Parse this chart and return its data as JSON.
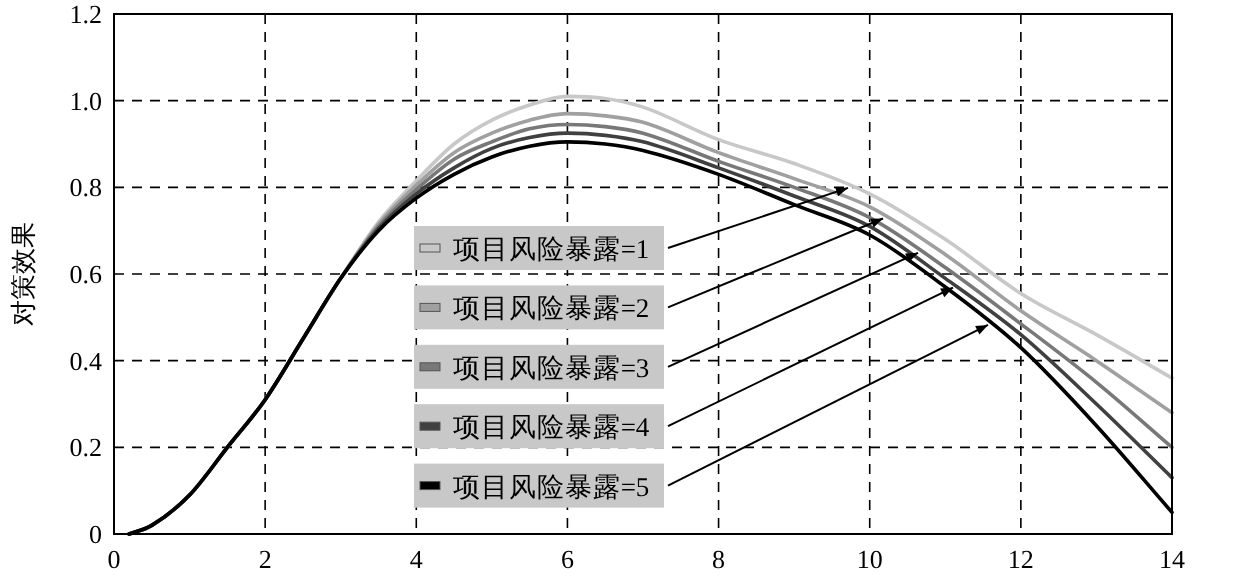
{
  "chart_data": {
    "type": "line",
    "ylabel": "对策效果",
    "x": [
      0.2,
      0.5,
      1,
      1.5,
      2,
      2.5,
      3,
      3.5,
      4,
      4.5,
      5,
      5.5,
      6,
      6.5,
      7,
      8,
      9,
      10,
      11,
      12,
      13,
      14
    ],
    "series": [
      {
        "name": "项目风险暴露=1",
        "color": "#c8c8c8",
        "values": [
          0,
          0.02,
          0.09,
          0.2,
          0.31,
          0.45,
          0.59,
          0.72,
          0.815,
          0.9,
          0.955,
          0.99,
          1.01,
          1.005,
          0.985,
          0.91,
          0.855,
          0.785,
          0.68,
          0.555,
          0.46,
          0.36
        ]
      },
      {
        "name": "项目风险暴露=2",
        "color": "#a0a0a0",
        "values": [
          0,
          0.02,
          0.09,
          0.2,
          0.31,
          0.45,
          0.59,
          0.715,
          0.805,
          0.88,
          0.925,
          0.955,
          0.97,
          0.965,
          0.95,
          0.88,
          0.82,
          0.755,
          0.645,
          0.515,
          0.4,
          0.28
        ]
      },
      {
        "name": "项目风险暴露=3",
        "color": "#787878",
        "values": [
          0,
          0.02,
          0.09,
          0.2,
          0.31,
          0.45,
          0.59,
          0.71,
          0.795,
          0.865,
          0.905,
          0.935,
          0.945,
          0.94,
          0.925,
          0.86,
          0.8,
          0.73,
          0.615,
          0.485,
          0.35,
          0.2
        ]
      },
      {
        "name": "项目风险暴露=4",
        "color": "#404040",
        "values": [
          0,
          0.02,
          0.09,
          0.2,
          0.31,
          0.45,
          0.59,
          0.705,
          0.785,
          0.845,
          0.89,
          0.915,
          0.925,
          0.92,
          0.905,
          0.845,
          0.78,
          0.71,
          0.59,
          0.46,
          0.3,
          0.13
        ]
      },
      {
        "name": "项目风险暴露=5",
        "color": "#000000",
        "values": [
          0,
          0.02,
          0.09,
          0.2,
          0.31,
          0.45,
          0.59,
          0.7,
          0.775,
          0.83,
          0.87,
          0.895,
          0.905,
          0.9,
          0.885,
          0.83,
          0.76,
          0.69,
          0.57,
          0.43,
          0.25,
          0.05
        ]
      }
    ],
    "xlim": [
      0,
      14
    ],
    "ylim": [
      0,
      1.2
    ],
    "xticks": [
      0,
      2,
      4,
      6,
      8,
      10,
      12,
      14
    ],
    "yticks": [
      0,
      {
        "value": 0.2,
        "label": "0.2"
      },
      {
        "value": 0.4,
        "label": "0.4"
      },
      {
        "value": 0.6,
        "label": "0.6"
      },
      {
        "value": 0.8,
        "label": "0.8"
      },
      {
        "value": 1.0,
        "label": "1.0"
      },
      {
        "value": 1.2,
        "label": "1.2"
      }
    ],
    "grid": true,
    "line_style": "solid",
    "legend": "bottom"
  }
}
